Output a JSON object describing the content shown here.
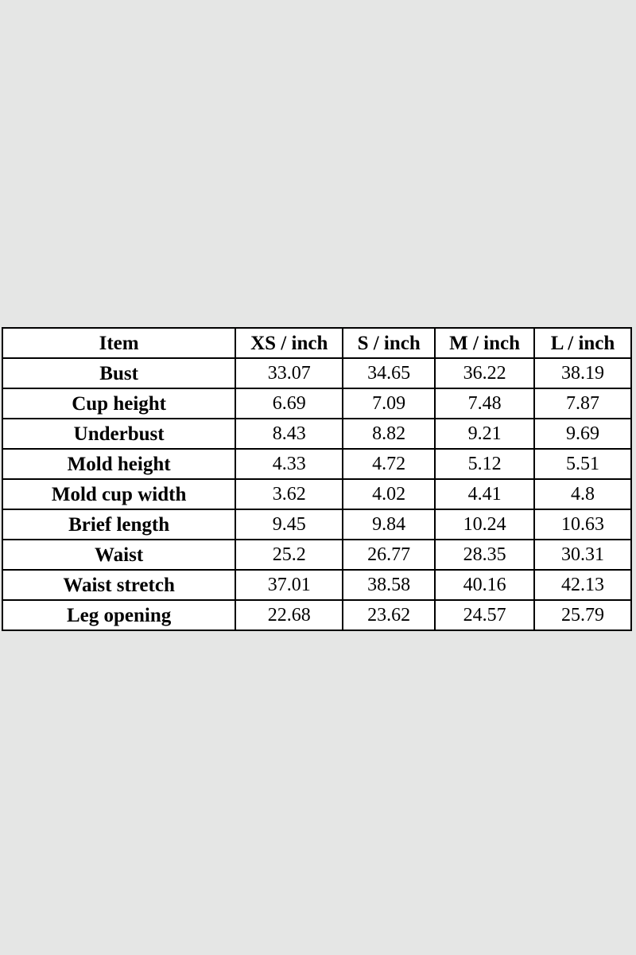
{
  "colors": {
    "page_background": "#e5e6e5",
    "table_background": "#ffffff",
    "border": "#000000",
    "text": "#000000"
  },
  "table": {
    "headers": [
      "Item",
      "XS / inch",
      "S / inch",
      "M / inch",
      "L / inch"
    ],
    "rows": [
      {
        "item": "Bust",
        "values": [
          "33.07",
          "34.65",
          "36.22",
          "38.19"
        ]
      },
      {
        "item": "Cup height",
        "values": [
          "6.69",
          "7.09",
          "7.48",
          "7.87"
        ]
      },
      {
        "item": "Underbust",
        "values": [
          "8.43",
          "8.82",
          "9.21",
          "9.69"
        ]
      },
      {
        "item": "Mold height",
        "values": [
          "4.33",
          "4.72",
          "5.12",
          "5.51"
        ]
      },
      {
        "item": "Mold cup width",
        "values": [
          "3.62",
          "4.02",
          "4.41",
          "4.8"
        ]
      },
      {
        "item": "Brief length",
        "values": [
          "9.45",
          "9.84",
          "10.24",
          "10.63"
        ]
      },
      {
        "item": "Waist",
        "values": [
          "25.2",
          "26.77",
          "28.35",
          "30.31"
        ]
      },
      {
        "item": "Waist stretch",
        "values": [
          "37.01",
          "38.58",
          "40.16",
          "42.13"
        ]
      },
      {
        "item": "Leg opening",
        "values": [
          "22.68",
          "23.62",
          "24.57",
          "25.79"
        ]
      }
    ]
  },
  "chart_data": {
    "type": "table",
    "columns": [
      "Item",
      "XS / inch",
      "S / inch",
      "M / inch",
      "L / inch"
    ],
    "categories": [
      "Bust",
      "Cup height",
      "Underbust",
      "Mold height",
      "Mold cup width",
      "Brief length",
      "Waist",
      "Waist stretch",
      "Leg opening"
    ],
    "series": [
      {
        "name": "XS / inch",
        "values": [
          33.07,
          6.69,
          8.43,
          4.33,
          3.62,
          9.45,
          25.2,
          37.01,
          22.68
        ]
      },
      {
        "name": "S / inch",
        "values": [
          34.65,
          7.09,
          8.82,
          4.72,
          4.02,
          9.84,
          26.77,
          38.58,
          23.62
        ]
      },
      {
        "name": "M / inch",
        "values": [
          36.22,
          7.48,
          9.21,
          5.12,
          4.41,
          10.24,
          28.35,
          40.16,
          24.57
        ]
      },
      {
        "name": "L / inch",
        "values": [
          38.19,
          7.87,
          9.69,
          5.51,
          4.8,
          10.63,
          30.31,
          42.13,
          25.79
        ]
      }
    ]
  }
}
